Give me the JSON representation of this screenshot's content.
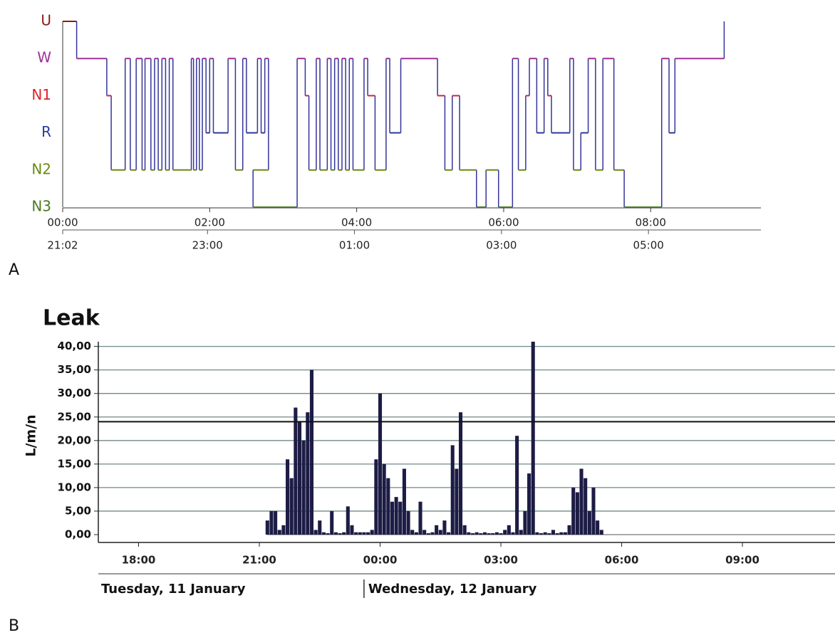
{
  "chart_data": [
    {
      "type": "step",
      "panel_label": "A",
      "y_categories": [
        "U",
        "W",
        "N1",
        "R",
        "N2",
        "N3"
      ],
      "category_colors": [
        "#8b1a1a",
        "#a0309a",
        "#e0202a",
        "#2a3a9a",
        "#6a8a10",
        "#4a7a20"
      ],
      "xlim": [
        0,
        9.5
      ],
      "xticks": [
        {
          "value": 0,
          "label": "00:00"
        },
        {
          "value": 2,
          "label": "02:00"
        },
        {
          "value": 4,
          "label": "04:00"
        },
        {
          "value": 6,
          "label": "06:00"
        },
        {
          "value": 8,
          "label": "08:00"
        }
      ],
      "x2ticks": [
        {
          "value": 0,
          "label": "21:02"
        },
        {
          "value": 1.97,
          "label": "23:00"
        },
        {
          "value": 3.97,
          "label": "01:00"
        },
        {
          "value": 5.97,
          "label": "03:00"
        },
        {
          "value": 7.97,
          "label": "05:00"
        }
      ],
      "series": [
        {
          "color": "#34349a",
          "x": [
            0,
            0.19,
            0.6,
            0.66,
            0.85,
            0.92,
            1.0,
            1.08,
            1.12,
            1.2,
            1.25,
            1.3,
            1.35,
            1.4,
            1.45,
            1.5,
            1.75,
            1.78,
            1.82,
            1.86,
            1.9,
            1.95,
            2.0,
            2.05,
            2.25,
            2.35,
            2.45,
            2.5,
            2.65,
            2.7,
            2.75,
            2.8,
            2.59,
            3.19,
            3.3,
            3.35,
            3.45,
            3.5,
            3.6,
            3.65,
            3.7,
            3.75,
            3.8,
            3.85,
            3.9,
            3.95,
            4.1,
            4.15,
            4.25,
            4.4,
            4.45,
            4.6,
            5.1,
            5.2,
            5.3,
            5.4,
            5.63,
            5.76,
            5.93,
            6.12,
            6.2,
            6.3,
            6.35,
            6.45,
            6.55,
            6.6,
            6.65,
            6.9,
            6.95,
            7.05,
            7.15,
            7.25,
            7.35,
            7.5,
            7.64,
            8.15,
            8.25,
            8.33,
            9.0
          ],
          "values": [
            "U",
            "W",
            "N1",
            "N2",
            "W",
            "N2",
            "W",
            "N2",
            "W",
            "N2",
            "W",
            "N2",
            "W",
            "N2",
            "W",
            "N2",
            "W",
            "N2",
            "W",
            "N2",
            "W",
            "R",
            "W",
            "R",
            "W",
            "N2",
            "W",
            "R",
            "W",
            "R",
            "W",
            "N2",
            "N3",
            "W",
            "N1",
            "N2",
            "W",
            "N2",
            "W",
            "N2",
            "W",
            "N2",
            "W",
            "N2",
            "W",
            "N2",
            "W",
            "N1",
            "N2",
            "W",
            "R",
            "W",
            "N1",
            "N2",
            "N1",
            "N2",
            "N3",
            "N2",
            "N3",
            "W",
            "N2",
            "N1",
            "W",
            "R",
            "W",
            "N1",
            "R",
            "W",
            "N2",
            "R",
            "W",
            "N2",
            "W",
            "N2",
            "N3",
            "W",
            "R",
            "W",
            "U"
          ]
        }
      ]
    },
    {
      "type": "bar",
      "title": "Leak",
      "ylabel": "L/m/n",
      "panel_label": "B",
      "xlim": [
        17,
        35.3
      ],
      "ylim": [
        0,
        41
      ],
      "yticks": [
        {
          "value": 0,
          "label": "0,00"
        },
        {
          "value": 5,
          "label": "5,00"
        },
        {
          "value": 10,
          "label": "10,00"
        },
        {
          "value": 15,
          "label": "15,00"
        },
        {
          "value": 20,
          "label": "20,00"
        },
        {
          "value": 25,
          "label": "25,00"
        },
        {
          "value": 30,
          "label": "30,00"
        },
        {
          "value": 35,
          "label": "35,00"
        },
        {
          "value": 40,
          "label": "40,00"
        }
      ],
      "xticks": [
        {
          "value": 18,
          "label": "18:00"
        },
        {
          "value": 21,
          "label": "21:00"
        },
        {
          "value": 24,
          "label": "00:00"
        },
        {
          "value": 27,
          "label": "03:00"
        },
        {
          "value": 30,
          "label": "06:00"
        },
        {
          "value": 33,
          "label": "09:00"
        }
      ],
      "grid": true,
      "threshold": 24,
      "date_labels": [
        "Tuesday, 11 January",
        "Wednesday, 12 January"
      ],
      "date_divider": 23.6,
      "color": "#1c1c45",
      "x": [
        21.2,
        21.3,
        21.4,
        21.5,
        21.6,
        21.7,
        21.8,
        21.9,
        22.0,
        22.1,
        22.2,
        22.3,
        22.4,
        22.5,
        22.6,
        22.7,
        22.8,
        22.9,
        23.0,
        23.1,
        23.2,
        23.3,
        23.4,
        23.5,
        23.6,
        23.7,
        23.8,
        23.9,
        24.0,
        24.1,
        24.2,
        24.3,
        24.4,
        24.5,
        24.6,
        24.7,
        24.8,
        24.9,
        25.0,
        25.1,
        25.2,
        25.3,
        25.4,
        25.5,
        25.6,
        25.7,
        25.8,
        25.9,
        26.0,
        26.1,
        26.2,
        26.3,
        26.4,
        26.5,
        26.6,
        26.7,
        26.8,
        26.9,
        27.0,
        27.1,
        27.2,
        27.3,
        27.4,
        27.5,
        27.6,
        27.7,
        27.8,
        27.9,
        28.0,
        28.1,
        28.2,
        28.3,
        28.4,
        28.5,
        28.6,
        28.7,
        28.8,
        28.9,
        29.0,
        29.1,
        29.2,
        29.3,
        29.4,
        29.5
      ],
      "values": [
        3,
        5,
        5,
        1,
        2,
        16,
        12,
        27,
        24,
        20,
        26,
        35,
        1,
        3,
        0.5,
        0.3,
        5,
        0.5,
        0.3,
        0.5,
        6,
        2,
        0.5,
        0.5,
        0.5,
        0.5,
        1,
        16,
        30,
        15,
        12,
        7,
        8,
        7,
        14,
        5,
        1,
        0.5,
        7,
        1,
        0.3,
        0.5,
        2,
        1,
        3,
        0.5,
        19,
        14,
        26,
        2,
        0.5,
        0.3,
        0.5,
        0.3,
        0.5,
        0.3,
        0.3,
        0.5,
        0.3,
        1,
        2,
        0.5,
        21,
        1,
        5,
        13,
        41,
        0.5,
        0.3,
        0.5,
        0.3,
        1,
        0.3,
        0.5,
        0.5,
        2,
        10,
        9,
        14,
        12,
        5,
        10,
        3,
        1
      ]
    }
  ]
}
